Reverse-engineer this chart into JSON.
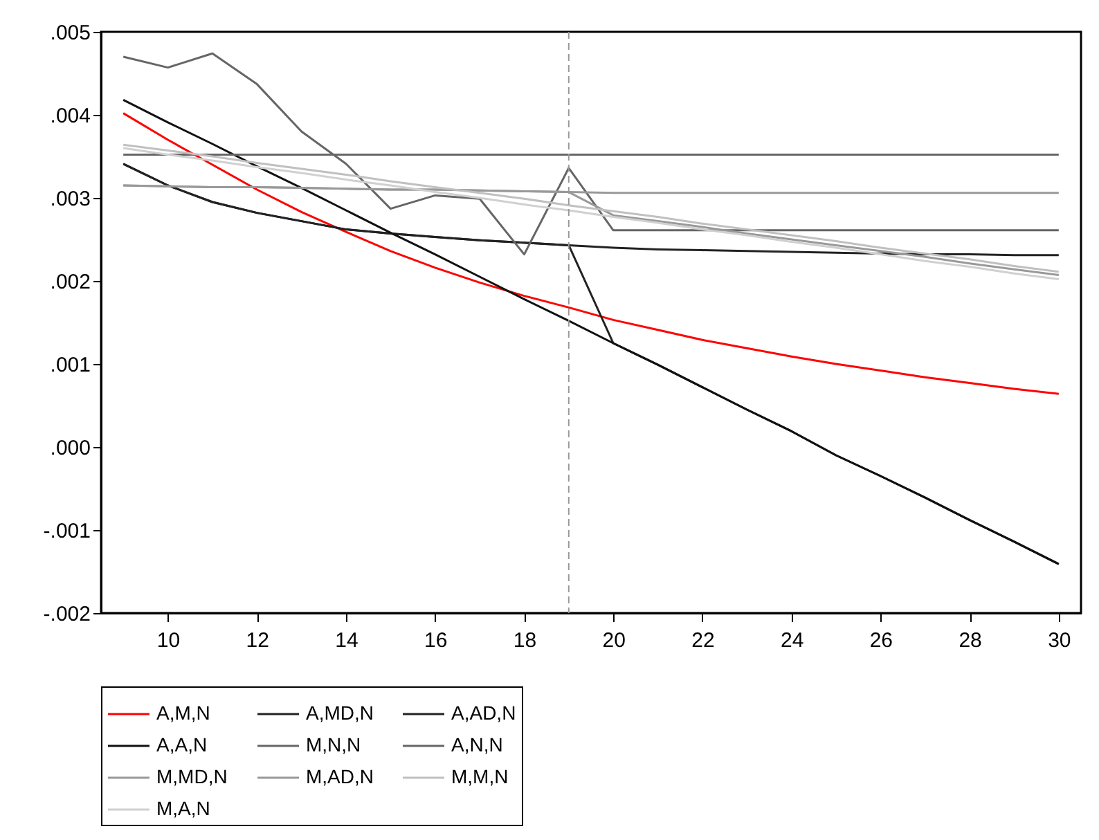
{
  "chart_data": {
    "type": "line",
    "x": [
      9,
      10,
      11,
      12,
      13,
      14,
      15,
      16,
      17,
      18,
      19,
      20,
      21,
      22,
      23,
      24,
      25,
      26,
      27,
      28,
      29,
      30
    ],
    "xlim": [
      8.5,
      30.5
    ],
    "xticks": [
      10,
      12,
      14,
      16,
      18,
      20,
      22,
      24,
      26,
      28,
      30
    ],
    "ylim": [
      -0.002,
      0.005
    ],
    "yticks": [
      {
        "value": -0.002,
        "label": "-.002"
      },
      {
        "value": -0.001,
        "label": "-.001"
      },
      {
        "value": 0,
        "label": ".000"
      },
      {
        "value": 0.001,
        "label": ".001"
      },
      {
        "value": 0.002,
        "label": ".002"
      },
      {
        "value": 0.003,
        "label": ".003"
      },
      {
        "value": 0.004,
        "label": ".004"
      },
      {
        "value": 0.005,
        "label": ".005"
      }
    ],
    "grid": false,
    "legend": "bottom",
    "line_style": "solid",
    "marker": "none",
    "ref_lines": [
      {
        "axis": "x",
        "value": 19,
        "color": "#999999",
        "line_style": "dashed"
      }
    ],
    "series": [
      {
        "name": "A,M,N",
        "color": "#ff0000",
        "values": [
          0.00402,
          0.0037,
          0.0034,
          0.0031,
          0.00283,
          0.00259,
          0.00236,
          0.00216,
          0.00198,
          0.00182,
          0.00168,
          0.00153,
          0.00141,
          0.00129,
          0.00119,
          0.00109,
          0.001,
          0.00092,
          0.00084,
          0.00077,
          0.0007,
          0.00064
        ]
      },
      {
        "name": "A,MD,N",
        "color": "#222222",
        "values": [
          0.00341,
          0.00315,
          0.00295,
          0.00282,
          0.00272,
          0.00262,
          0.00257,
          0.00253,
          0.00249,
          0.00246,
          0.00243,
          0.0024,
          0.00238,
          0.00237,
          0.00236,
          0.00235,
          0.00234,
          0.00233,
          0.00232,
          0.00232,
          0.00231,
          0.00231
        ]
      },
      {
        "name": "A,AD,N",
        "color": "#222222",
        "values": [
          0.00341,
          0.00315,
          0.00295,
          0.00282,
          0.00272,
          0.00262,
          0.00257,
          0.00253,
          0.00249,
          0.00246,
          0.00243,
          0.00125,
          0.00099,
          0.00072,
          0.00045,
          0.00019,
          -0.0001,
          -0.00035,
          -0.00061,
          -0.00088,
          -0.00114,
          -0.00141
        ]
      },
      {
        "name": "A,A,N",
        "color": "#111111",
        "values": [
          0.00418,
          0.00391,
          0.00365,
          0.00338,
          0.00312,
          0.00285,
          0.00258,
          0.00232,
          0.00205,
          0.00178,
          0.00152,
          0.00125,
          0.00099,
          0.00072,
          0.00045,
          0.00019,
          -0.0001,
          -0.00035,
          -0.00061,
          -0.00088,
          -0.00114,
          -0.00141
        ]
      },
      {
        "name": "M,N,N",
        "color": "#666666",
        "values": [
          0.0047,
          0.00457,
          0.00474,
          0.00437,
          0.0038,
          0.00341,
          0.00287,
          0.00303,
          0.00299,
          0.00232,
          0.00336,
          0.00261,
          0.00261,
          0.00261,
          0.00261,
          0.00261,
          0.00261,
          0.00261,
          0.00261,
          0.00261,
          0.00261,
          0.00261
        ]
      },
      {
        "name": "A,N,N",
        "color": "#666666",
        "values": [
          0.00352,
          0.00352,
          0.00352,
          0.00352,
          0.00352,
          0.00352,
          0.00352,
          0.00352,
          0.00352,
          0.00352,
          0.00352,
          0.00352,
          0.00352,
          0.00352,
          0.00352,
          0.00352,
          0.00352,
          0.00352,
          0.00352,
          0.00352,
          0.00352,
          0.00352
        ]
      },
      {
        "name": "M,MD,N",
        "color": "#999999",
        "values": [
          0.00315,
          0.00314,
          0.00313,
          0.00313,
          0.00312,
          0.00311,
          0.0031,
          0.0031,
          0.00309,
          0.00308,
          0.00307,
          0.00306,
          0.00306,
          0.00306,
          0.00306,
          0.00306,
          0.00306,
          0.00306,
          0.00306,
          0.00306,
          0.00306,
          0.00306
        ]
      },
      {
        "name": "M,AD,N",
        "color": "#999999",
        "values": [
          0.00315,
          0.00314,
          0.00313,
          0.00313,
          0.00312,
          0.00311,
          0.0031,
          0.0031,
          0.00309,
          0.00308,
          0.00307,
          0.00279,
          0.00272,
          0.00265,
          0.00257,
          0.0025,
          0.00243,
          0.00236,
          0.00229,
          0.00221,
          0.00214,
          0.00207
        ]
      },
      {
        "name": "M,M,N",
        "color": "#c0c0c0",
        "values": [
          0.00364,
          0.00357,
          0.0035,
          0.00342,
          0.00335,
          0.00328,
          0.0032,
          0.00313,
          0.00306,
          0.00299,
          0.00291,
          0.00284,
          0.00277,
          0.00269,
          0.00262,
          0.00255,
          0.00248,
          0.0024,
          0.00233,
          0.00226,
          0.00218,
          0.00211
        ]
      },
      {
        "name": "M,A,N",
        "color": "#d0d0d0",
        "values": [
          0.0036,
          0.00352,
          0.00345,
          0.00337,
          0.0033,
          0.00322,
          0.00315,
          0.00307,
          0.003,
          0.00292,
          0.00285,
          0.00277,
          0.0027,
          0.00262,
          0.00255,
          0.00247,
          0.0024,
          0.00232,
          0.00224,
          0.00217,
          0.00209,
          0.00202
        ]
      }
    ]
  }
}
